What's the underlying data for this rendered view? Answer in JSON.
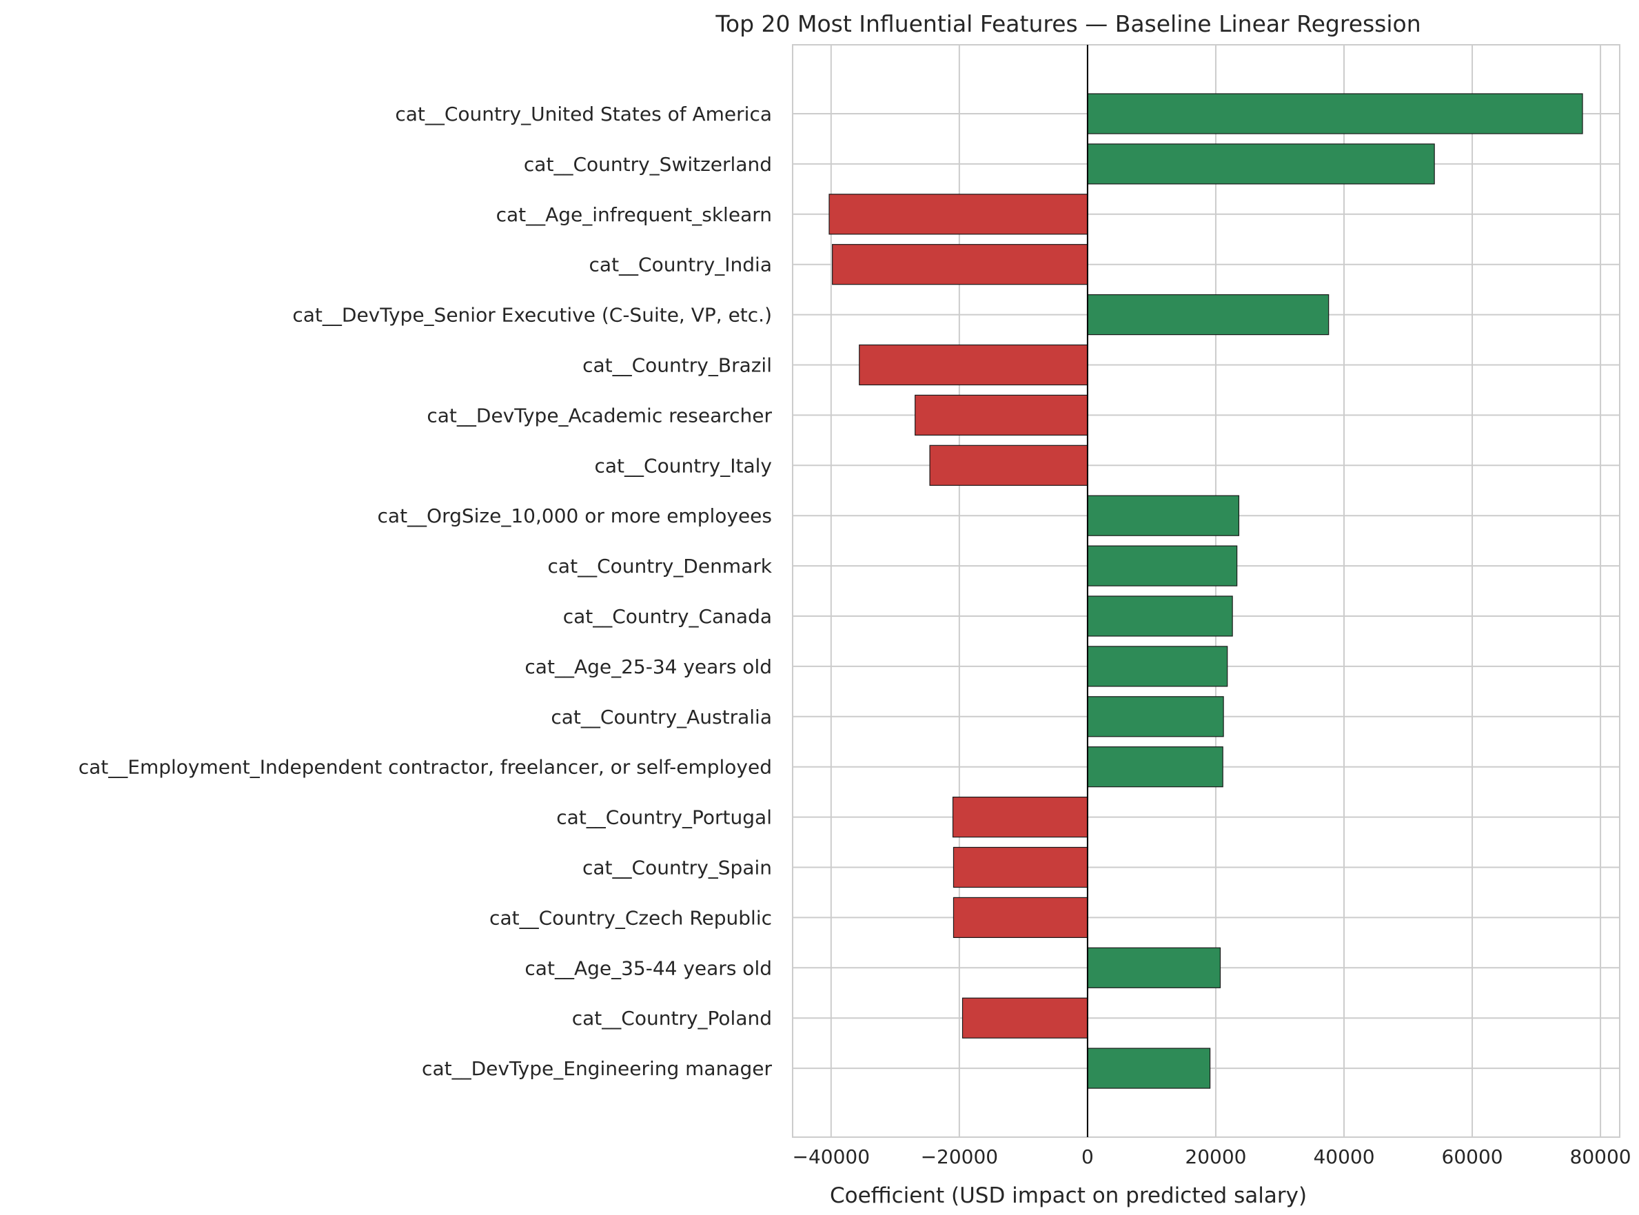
{
  "chart_data": {
    "type": "bar",
    "orientation": "horizontal",
    "title": "Top 20 Most Influential Features — Baseline Linear Regression",
    "xlabel": "Coefficient (USD impact on predicted salary)",
    "ylabel": "",
    "xlim": [
      -46000,
      83000
    ],
    "xticks": [
      -40000,
      -20000,
      0,
      20000,
      40000,
      60000,
      80000
    ],
    "xtick_labels": [
      "−40000",
      "−20000",
      "0",
      "20000",
      "40000",
      "60000",
      "80000"
    ],
    "grid": true,
    "legend": "none",
    "categories": [
      "cat__Country_United States of America",
      "cat__Country_Switzerland",
      "cat__Age_infrequent_sklearn",
      "cat__Country_India",
      "cat__DevType_Senior Executive (C-Suite, VP, etc.)",
      "cat__Country_Brazil",
      "cat__DevType_Academic researcher",
      "cat__Country_Italy",
      "cat__OrgSize_10,000 or more employees",
      "cat__Country_Denmark",
      "cat__Country_Canada",
      "cat__Age_25-34 years old",
      "cat__Country_Australia",
      "cat__Employment_Independent contractor, freelancer, or self-employed",
      "cat__Country_Portugal",
      "cat__Country_Spain",
      "cat__Country_Czech Republic",
      "cat__Age_35-44 years old",
      "cat__Country_Poland",
      "cat__DevType_Engineering manager"
    ],
    "values": [
      77200,
      54100,
      -40300,
      -39800,
      37600,
      -35600,
      -26900,
      -24600,
      23600,
      23300,
      22600,
      21800,
      21200,
      21100,
      -21000,
      -20900,
      -20900,
      20700,
      -19500,
      19100
    ],
    "colors": {
      "positive": "#2e8b57",
      "negative": "#c83d3b"
    }
  }
}
